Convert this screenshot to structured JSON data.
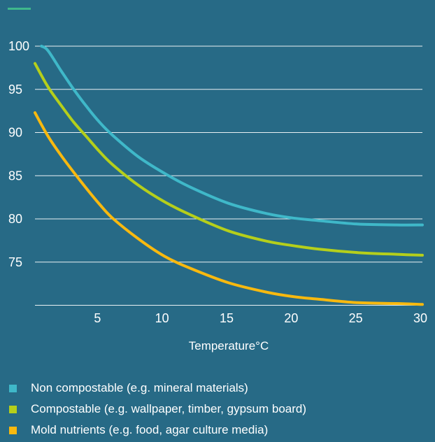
{
  "chart_data": {
    "type": "line",
    "title": "",
    "xlabel": "Temperature°C",
    "ylabel": "",
    "xlim": [
      0,
      30
    ],
    "ylim": [
      70,
      100
    ],
    "x_ticks": [
      5,
      10,
      15,
      20,
      25,
      30
    ],
    "y_ticks": [
      75,
      80,
      85,
      90,
      95,
      100
    ],
    "grid": "horizontal",
    "legend_position": "bottom",
    "series": [
      {
        "name": "Non compostable (e.g. mineral materials)",
        "color": "#3fb8c9",
        "x": [
          0.5,
          1,
          2,
          3,
          4,
          5,
          6,
          8,
          10,
          12,
          15,
          18,
          20,
          22,
          25,
          28,
          30
        ],
        "y": [
          100,
          99.5,
          97.2,
          95.0,
          93.0,
          91.2,
          89.7,
          87.2,
          85.3,
          83.7,
          81.8,
          80.6,
          80.1,
          79.8,
          79.4,
          79.3,
          79.3
        ]
      },
      {
        "name": "Compostable (e.g. wallpaper, timber, gypsum board)",
        "color": "#b5cf1b",
        "x": [
          0,
          1,
          2,
          3,
          4,
          5,
          6,
          8,
          10,
          12,
          15,
          18,
          20,
          22,
          25,
          28,
          30
        ],
        "y": [
          98,
          95.3,
          93.2,
          91.2,
          89.5,
          87.8,
          86.3,
          83.9,
          82.0,
          80.5,
          78.6,
          77.4,
          76.9,
          76.5,
          76.1,
          75.9,
          75.8
        ]
      },
      {
        "name": "Mold nutrients (e.g. food, agar culture media)",
        "color": "#f8b90f",
        "x": [
          0,
          1,
          2,
          3,
          4,
          5,
          6,
          8,
          10,
          12,
          15,
          18,
          20,
          22,
          25,
          28,
          30
        ],
        "y": [
          92.3,
          89.6,
          87.4,
          85.4,
          83.5,
          81.7,
          80.1,
          77.7,
          75.7,
          74.3,
          72.6,
          71.5,
          71.0,
          70.7,
          70.3,
          70.2,
          70.1
        ]
      }
    ]
  }
}
